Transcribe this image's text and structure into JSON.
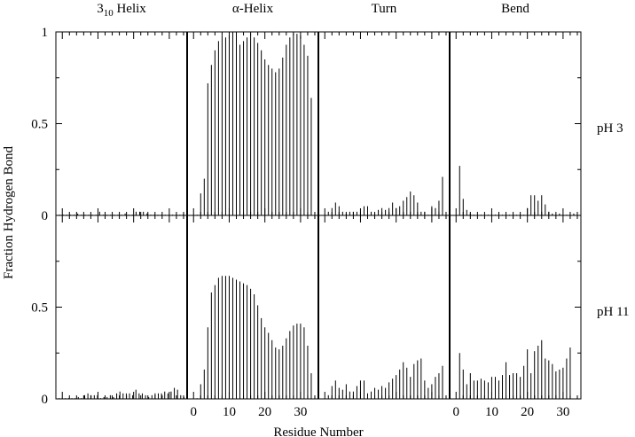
{
  "chart_data": {
    "type": "bar",
    "ylabel": "Fraction Hydrogen Bond",
    "xlabel": "Residue Number",
    "ylim": [
      0,
      1
    ],
    "yticks": [
      0,
      0.5,
      1
    ],
    "ytick_labels": [
      "0",
      "0.5",
      "1"
    ],
    "xlim": [
      -1.8,
      35
    ],
    "xticks": [
      0,
      10,
      20,
      30
    ],
    "xtick_labels": [
      "0",
      "10",
      "20",
      "30"
    ],
    "columns": [
      {
        "key": "310",
        "title_main": "3",
        "title_sub": "10",
        "title_rest": " Helix"
      },
      {
        "key": "alpha",
        "title_main": "α-Helix"
      },
      {
        "key": "turn",
        "title_main": "Turn"
      },
      {
        "key": "bend",
        "title_main": "Bend"
      }
    ],
    "rows": [
      {
        "key": "ph3",
        "label": "pH 3"
      },
      {
        "key": "ph11",
        "label": "pH 11"
      }
    ],
    "series": {
      "ph3": {
        "310": [
          0,
          0,
          0,
          0,
          0,
          0.01,
          0,
          0,
          0,
          0,
          0,
          0.02,
          0,
          0,
          0,
          0,
          0,
          0,
          0.01,
          0,
          0,
          0.02,
          0.02,
          0.02,
          0.01,
          0,
          0,
          0,
          0,
          0,
          0,
          0,
          0,
          0,
          0.01
        ],
        "alpha": [
          0,
          0.12,
          0.2,
          0.72,
          0.82,
          0.9,
          0.95,
          0.98,
          0.97,
          0.98,
          1.0,
          0.99,
          0.93,
          0.95,
          0.97,
          0.99,
          0.97,
          0.94,
          0.9,
          0.85,
          0.82,
          0.8,
          0.78,
          0.8,
          0.86,
          0.93,
          0.97,
          0.99,
          0.99,
          0.98,
          0.93,
          0.87,
          0.64
        ],
        "turn": [
          0.02,
          0.04,
          0.07,
          0.05,
          0.02,
          0.01,
          0.02,
          0.02,
          0.02,
          0.02,
          0.05,
          0.05,
          0.02,
          0.01,
          0.03,
          0.04,
          0.03,
          0.04,
          0.07,
          0.04,
          0.05,
          0.08,
          0.1,
          0.13,
          0.11,
          0.07,
          0.02,
          0.02,
          0,
          0.05,
          0.04,
          0.08,
          0.21
        ],
        "bend": [
          0.27,
          0.09,
          0.03,
          0.01,
          0,
          0,
          0,
          0,
          0,
          0,
          0,
          0,
          0,
          0,
          0,
          0,
          0,
          0,
          0,
          0.04,
          0.11,
          0.11,
          0.08,
          0.11,
          0.06,
          0.02,
          0.01,
          0,
          0.01,
          0,
          0,
          0,
          0.01
        ]
      },
      "ph11": {
        "310": [
          0,
          0,
          0,
          0,
          0,
          0,
          0.01,
          0,
          0.02,
          0.03,
          0.02,
          0.02,
          0.02,
          0,
          0.01,
          0.01,
          0.02,
          0.01,
          0.03,
          0.04,
          0.03,
          0.03,
          0.03,
          0.02,
          0.05,
          0.03,
          0.03,
          0.02,
          0.01,
          0.02,
          0.03,
          0.03,
          0.03,
          0.04,
          0.03,
          0.04,
          0.06,
          0.05,
          0.02,
          0.01
        ],
        "alpha": [
          0,
          0.08,
          0.16,
          0.39,
          0.58,
          0.62,
          0.66,
          0.67,
          0.67,
          0.67,
          0.66,
          0.65,
          0.64,
          0.63,
          0.62,
          0.6,
          0.57,
          0.51,
          0.44,
          0.39,
          0.36,
          0.32,
          0.28,
          0.27,
          0.29,
          0.33,
          0.37,
          0.4,
          0.41,
          0.41,
          0.39,
          0.29,
          0.14
        ],
        "turn": [
          0.02,
          0.07,
          0.1,
          0.06,
          0.05,
          0.08,
          0.04,
          0.04,
          0.07,
          0.1,
          0.1,
          0.03,
          0.04,
          0.06,
          0.05,
          0.07,
          0.06,
          0.09,
          0.11,
          0.13,
          0.16,
          0.2,
          0.17,
          0.12,
          0.19,
          0.21,
          0.22,
          0.1,
          0.06,
          0.08,
          0.12,
          0.14,
          0.18
        ],
        "bend": [
          0.25,
          0.16,
          0.08,
          0.14,
          0.1,
          0.1,
          0.11,
          0.1,
          0.09,
          0.12,
          0.12,
          0.1,
          0.13,
          0.2,
          0.13,
          0.14,
          0.14,
          0.12,
          0.18,
          0.27,
          0.14,
          0.26,
          0.29,
          0.32,
          0.22,
          0.21,
          0.19,
          0.15,
          0.16,
          0.17,
          0.22,
          0.28
        ]
      }
    }
  }
}
